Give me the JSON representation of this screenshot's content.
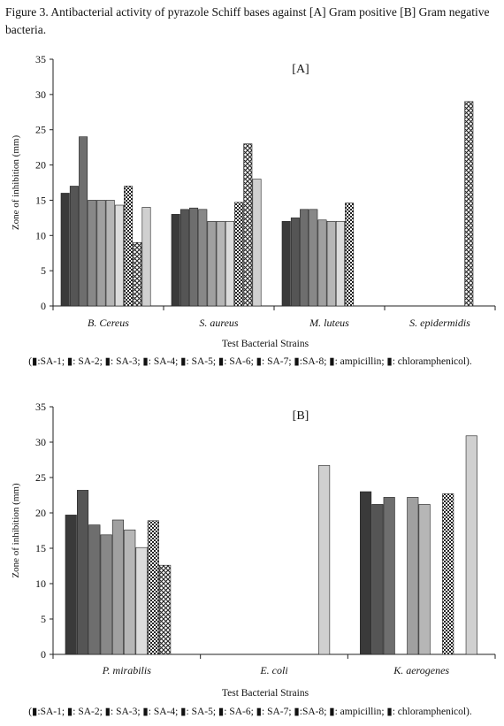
{
  "caption": "Figure 3. Antibacterial activity of pyrazole Schiff bases against [A] Gram positive [B] Gram negative bacteria.",
  "legend_text": "(▮:SA-1; ▮: SA-2; ▮: SA-3; ▮: SA-4; ▮: SA-5; ▮: SA-6; ▮: SA-7; ▮:SA-8; ▮: ampicillin; ▮: chloramphenicol).",
  "series_colors": [
    "#3a3a3a",
    "#555555",
    "#6e6e6e",
    "#888888",
    "#a0a0a0",
    "#b6b6b6",
    "#dcdcdc",
    "checker",
    "crosshatch",
    "#d0d0d0"
  ],
  "chart_data": [
    {
      "type": "bar",
      "title": "[A]",
      "xlabel": "Test Bacterial Strains",
      "ylabel": "Zone of inhibition (mm)",
      "ylim": [
        0,
        35
      ],
      "yticks": [
        0,
        5,
        10,
        15,
        20,
        25,
        30,
        35
      ],
      "categories": [
        "B. Cereus",
        "S. aureus",
        "M. luteus",
        "S. epidermidis"
      ],
      "series": [
        {
          "name": "SA-1",
          "values": [
            16,
            13,
            12,
            0
          ]
        },
        {
          "name": "SA-2",
          "values": [
            17,
            13.7,
            12.5,
            0
          ]
        },
        {
          "name": "SA-3",
          "values": [
            24,
            13.9,
            13.7,
            0
          ]
        },
        {
          "name": "SA-4",
          "values": [
            15,
            13.7,
            13.7,
            0
          ]
        },
        {
          "name": "SA-5",
          "values": [
            15,
            12,
            12.2,
            0
          ]
        },
        {
          "name": "SA-6",
          "values": [
            15,
            12,
            12,
            0
          ]
        },
        {
          "name": "SA-7",
          "values": [
            14.3,
            12,
            12,
            0
          ]
        },
        {
          "name": "SA-8",
          "values": [
            17,
            14.7,
            14.6,
            0
          ]
        },
        {
          "name": "ampicillin",
          "values": [
            9,
            23,
            0,
            29
          ]
        },
        {
          "name": "chloramphenicol",
          "values": [
            14,
            18,
            0,
            0
          ]
        }
      ]
    },
    {
      "type": "bar",
      "title": "[B]",
      "xlabel": "Test Bacterial Strains",
      "ylabel": "Zone of inhibition (mm)",
      "ylim": [
        0,
        35
      ],
      "yticks": [
        0,
        5,
        10,
        15,
        20,
        25,
        30,
        35
      ],
      "categories": [
        "P. mirabilis",
        "E. coli",
        "K. aerogenes"
      ],
      "series": [
        {
          "name": "SA-1",
          "values": [
            19.7,
            0,
            23
          ]
        },
        {
          "name": "SA-2",
          "values": [
            23.2,
            0,
            21.2
          ]
        },
        {
          "name": "SA-3",
          "values": [
            18.3,
            0,
            22.2
          ]
        },
        {
          "name": "SA-4",
          "values": [
            16.9,
            0,
            0
          ]
        },
        {
          "name": "SA-5",
          "values": [
            19,
            0,
            22.2
          ]
        },
        {
          "name": "SA-6",
          "values": [
            17.6,
            0,
            21.2
          ]
        },
        {
          "name": "SA-7",
          "values": [
            15.1,
            0,
            0
          ]
        },
        {
          "name": "SA-8",
          "values": [
            18.9,
            0,
            22.7
          ]
        },
        {
          "name": "ampicillin",
          "values": [
            12.6,
            0,
            0
          ]
        },
        {
          "name": "chloramphenicol",
          "values": [
            0,
            26.7,
            30.9
          ]
        }
      ]
    }
  ]
}
